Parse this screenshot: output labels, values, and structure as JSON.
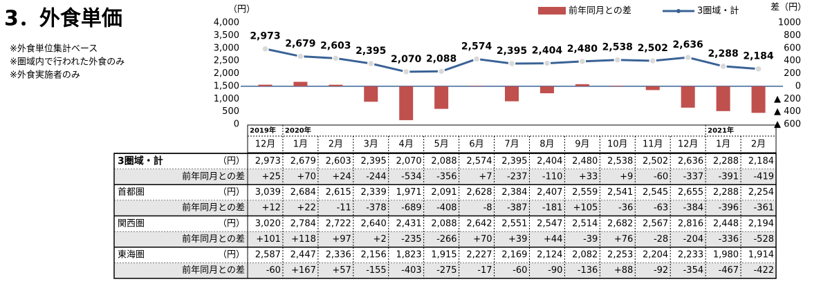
{
  "title": "3．外食単価",
  "notes": [
    "※外食単位集計ベース",
    "※圏域内で行われた外食のみ",
    "※外食実施者のみ"
  ],
  "chart_data": {
    "type": "bar-line",
    "categories": [
      "12月",
      "1月",
      "2月",
      "3月",
      "4月",
      "5月",
      "6月",
      "7月",
      "8月",
      "9月",
      "10月",
      "11月",
      "12月",
      "1月",
      "2月"
    ],
    "year_labels": [
      "2019年",
      "2020年",
      null,
      null,
      null,
      null,
      null,
      null,
      null,
      null,
      null,
      null,
      null,
      "2021年",
      null
    ],
    "y_label": "（円）",
    "y2_label": "差（円）",
    "ylim": [
      0,
      4000
    ],
    "yticks": [
      0,
      500,
      {
        "value": 1000,
        "label": "1,000"
      },
      {
        "value": 1500,
        "label": "1,500"
      },
      {
        "value": 2000,
        "label": "2,000"
      },
      {
        "value": 2500,
        "label": "2,500"
      },
      {
        "value": 3000,
        "label": "3,000"
      },
      {
        "value": 3500,
        "label": "3,500"
      },
      {
        "value": 4000,
        "label": "4,000"
      }
    ],
    "y2lim": [
      -600,
      1000
    ],
    "y2ticks": [
      {
        "value": -600,
        "label": "▲ 600"
      },
      {
        "value": -400,
        "label": "▲ 400"
      },
      {
        "value": -200,
        "label": "▲ 200"
      },
      0,
      200,
      400,
      600,
      800,
      1000
    ],
    "series": [
      {
        "name": "前年同月との差",
        "type": "bar",
        "axis": "y2",
        "color": "#c0504d",
        "values": [
          25,
          70,
          24,
          -244,
          -534,
          -356,
          7,
          -237,
          -110,
          33,
          9,
          -60,
          -337,
          -391,
          -419
        ]
      },
      {
        "name": "3圏域・計",
        "type": "line",
        "axis": "y",
        "color": "#3a6296",
        "values": [
          2973,
          2679,
          2603,
          2395,
          2070,
          2088,
          2574,
          2395,
          2404,
          2480,
          2538,
          2502,
          2636,
          2288,
          2184
        ],
        "value_labels": [
          "2,973",
          "2,679",
          "2,603",
          "2,395",
          "2,070",
          "2,088",
          "2,574",
          "2,395",
          "2,404",
          "2,480",
          "2,538",
          "2,502",
          "2,636",
          "2,288",
          "2,184"
        ]
      }
    ]
  },
  "table": {
    "rows": [
      {
        "label": "3圏域・計",
        "unit": "（円）",
        "cells": [
          "2,973",
          "2,679",
          "2,603",
          "2,395",
          "2,070",
          "2,088",
          "2,574",
          "2,395",
          "2,404",
          "2,480",
          "2,538",
          "2,502",
          "2,636",
          "2,288",
          "2,184"
        ]
      },
      {
        "label": "前年同月との差",
        "cells": [
          "+25",
          "+70",
          "+24",
          "-244",
          "-534",
          "-356",
          "+7",
          "-237",
          "-110",
          "+33",
          "+9",
          "-60",
          "-337",
          "-391",
          "-419"
        ]
      },
      {
        "label": "首都圏",
        "unit": "（円）",
        "cells": [
          "3,039",
          "2,684",
          "2,615",
          "2,339",
          "1,971",
          "2,091",
          "2,628",
          "2,384",
          "2,407",
          "2,559",
          "2,541",
          "2,545",
          "2,655",
          "2,288",
          "2,254"
        ]
      },
      {
        "label": "前年同月との差",
        "cells": [
          "+12",
          "+22",
          "-11",
          "-378",
          "-689",
          "-408",
          "-8",
          "-387",
          "-181",
          "+105",
          "-36",
          "-63",
          "-384",
          "-396",
          "-361"
        ]
      },
      {
        "label": "関西圏",
        "unit": "（円）",
        "cells": [
          "3,020",
          "2,784",
          "2,722",
          "2,640",
          "2,431",
          "2,088",
          "2,642",
          "2,551",
          "2,547",
          "2,514",
          "2,682",
          "2,567",
          "2,816",
          "2,448",
          "2,194"
        ]
      },
      {
        "label": "前年同月との差",
        "cells": [
          "+101",
          "+118",
          "+97",
          "+2",
          "-235",
          "-266",
          "+70",
          "+39",
          "+44",
          "-39",
          "+76",
          "-28",
          "-204",
          "-336",
          "-528"
        ]
      },
      {
        "label": "東海圏",
        "unit": "（円）",
        "cells": [
          "2,587",
          "2,447",
          "2,336",
          "2,156",
          "1,823",
          "1,915",
          "2,227",
          "2,169",
          "2,124",
          "2,082",
          "2,253",
          "2,204",
          "2,233",
          "1,980",
          "1,914"
        ]
      },
      {
        "label": "前年同月との差",
        "cells": [
          "-60",
          "+167",
          "+57",
          "-155",
          "-403",
          "-275",
          "-17",
          "-60",
          "-90",
          "-136",
          "+88",
          "-92",
          "-354",
          "-467",
          "-422"
        ]
      }
    ]
  }
}
